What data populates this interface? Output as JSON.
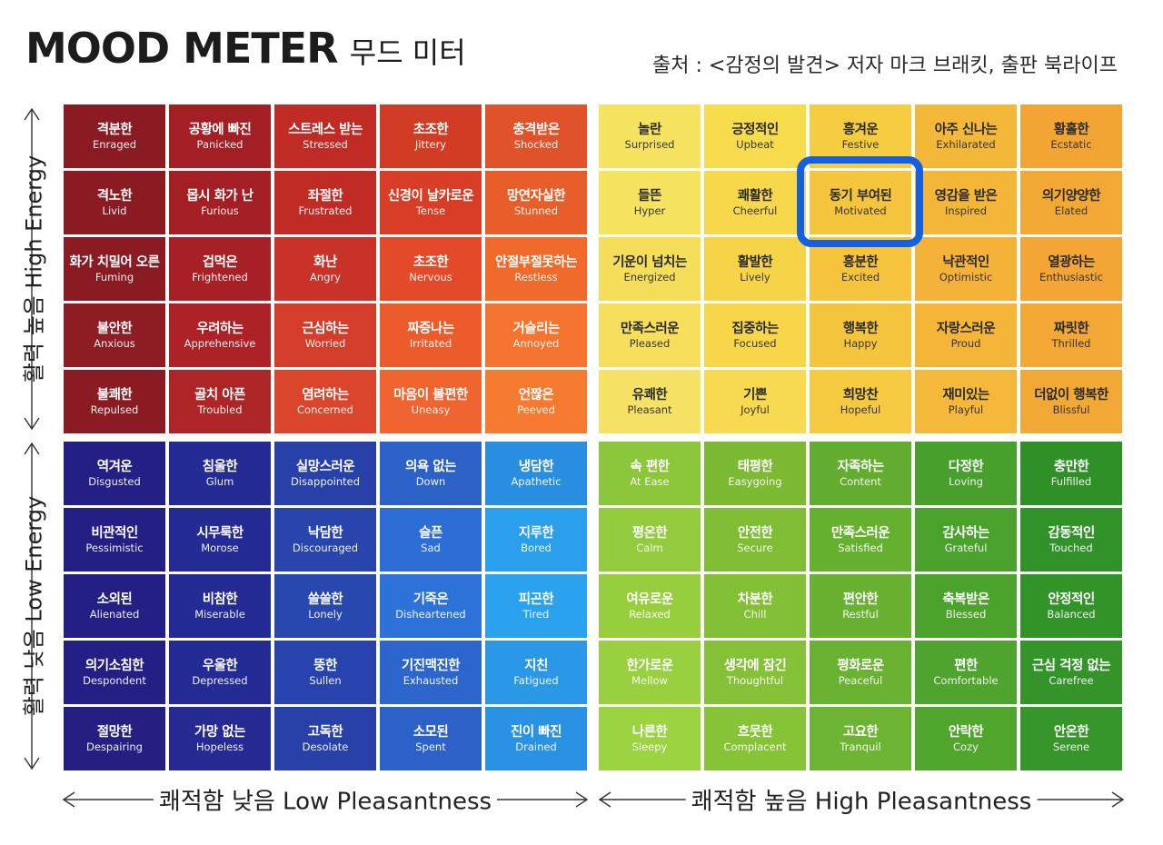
{
  "header": {
    "title": "MOOD METER",
    "subtitle": "무드 미터",
    "source": "출처 : <감정의 발견> 저자 마크 브래킷, 출판 북라이프"
  },
  "axes": {
    "high_energy": "활력 높음 High Energy",
    "low_energy": "활력 낮음 Low Energy",
    "low_pleasantness": "쾌적함 낮음 Low Pleasantness",
    "high_pleasantness": "쾌적함 높음  High Pleasantness"
  },
  "highlighted": "동기 부여된 Motivated",
  "quadrants": [
    {
      "id": "red",
      "colors": [
        [
          "#8b1b22",
          "#a31f24",
          "#c12b25",
          "#d13c25",
          "#e0532a"
        ],
        [
          "#8b1b22",
          "#a31f24",
          "#c12b25",
          "#d83d26",
          "#e85e2a"
        ],
        [
          "#8b1b22",
          "#a62025",
          "#c93228",
          "#e24a2a",
          "#f06a2c"
        ],
        [
          "#8d1c23",
          "#ac2226",
          "#d33d2a",
          "#ec5b2c",
          "#f47430"
        ],
        [
          "#8b1b22",
          "#ae2527",
          "#da452b",
          "#f06430",
          "#f67b30"
        ]
      ],
      "rows": [
        [
          [
            "격분한",
            "Enraged"
          ],
          [
            "공황에 빠진",
            "Panicked"
          ],
          [
            "스트레스 받는",
            "Stressed"
          ],
          [
            "초조한",
            "Jittery"
          ],
          [
            "충격받은",
            "Shocked"
          ]
        ],
        [
          [
            "격노한",
            "Livid"
          ],
          [
            "몹시 화가 난",
            "Furious"
          ],
          [
            "좌절한",
            "Frustrated"
          ],
          [
            "신경이 날카로운",
            "Tense"
          ],
          [
            "망연자실한",
            "Stunned"
          ]
        ],
        [
          [
            "화가 치밀어 오른",
            "Fuming"
          ],
          [
            "겁먹은",
            "Frightened"
          ],
          [
            "화난",
            "Angry"
          ],
          [
            "초조한",
            "Nervous"
          ],
          [
            "안절부절못하는",
            "Restless"
          ]
        ],
        [
          [
            "불안한",
            "Anxious"
          ],
          [
            "우려하는",
            "Apprehensive"
          ],
          [
            "근심하는",
            "Worried"
          ],
          [
            "짜증나는",
            "Irritated"
          ],
          [
            "거슬리는",
            "Annoyed"
          ]
        ],
        [
          [
            "불쾌한",
            "Repulsed"
          ],
          [
            "골치 아픈",
            "Troubled"
          ],
          [
            "염려하는",
            "Concerned"
          ],
          [
            "마음이 불편한",
            "Uneasy"
          ],
          [
            "언짢은",
            "Peeved"
          ]
        ]
      ]
    },
    {
      "id": "yellow",
      "colors": [
        [
          "#f6e35f",
          "#f7dc4e",
          "#f6cd40",
          "#f4b838",
          "#f2a533"
        ],
        [
          "#f6e35f",
          "#f7d84b",
          "#f5c63d",
          "#f4b638",
          "#f2a834"
        ],
        [
          "#f5de5a",
          "#f6d448",
          "#f5c33c",
          "#f4b338",
          "#f3a535"
        ],
        [
          "#f6df5c",
          "#f7d64a",
          "#f5c63d",
          "#f4b538",
          "#f3a835"
        ],
        [
          "#f6e264",
          "#f7da4f",
          "#f6ca40",
          "#f4b83a",
          "#f2a835"
        ]
      ],
      "rows": [
        [
          [
            "놀란",
            "Surprised"
          ],
          [
            "긍정적인",
            "Upbeat"
          ],
          [
            "흥겨운",
            "Festive"
          ],
          [
            "아주 신나는",
            "Exhilarated"
          ],
          [
            "황홀한",
            "Ecstatic"
          ]
        ],
        [
          [
            "들뜬",
            "Hyper"
          ],
          [
            "쾌활한",
            "Cheerful"
          ],
          [
            "동기 부여된",
            "Motivated"
          ],
          [
            "영감을 받은",
            "Inspired"
          ],
          [
            "의기양양한",
            "Elated"
          ]
        ],
        [
          [
            "기운이 넘치는",
            "Energized"
          ],
          [
            "활발한",
            "Lively"
          ],
          [
            "흥분한",
            "Excited"
          ],
          [
            "낙관적인",
            "Optimistic"
          ],
          [
            "열광하는",
            "Enthusiastic"
          ]
        ],
        [
          [
            "만족스러운",
            "Pleased"
          ],
          [
            "집중하는",
            "Focused"
          ],
          [
            "행복한",
            "Happy"
          ],
          [
            "자랑스러운",
            "Proud"
          ],
          [
            "짜릿한",
            "Thrilled"
          ]
        ],
        [
          [
            "유쾌한",
            "Pleasant"
          ],
          [
            "기쁜",
            "Joyful"
          ],
          [
            "희망찬",
            "Hopeful"
          ],
          [
            "재미있는",
            "Playful"
          ],
          [
            "더없이 행복한",
            "Blissful"
          ]
        ]
      ]
    },
    {
      "id": "blue",
      "colors": [
        [
          "#231f84",
          "#252b95",
          "#2841a8",
          "#2c62c8",
          "#2a8ee0"
        ],
        [
          "#231f84",
          "#252b95",
          "#2845ad",
          "#2c6ed6",
          "#2aa0ec"
        ],
        [
          "#231f84",
          "#252b95",
          "#2848b0",
          "#2c72d8",
          "#2aa2ee"
        ],
        [
          "#231f84",
          "#252b95",
          "#2843ad",
          "#2c66cc",
          "#2a98e6"
        ],
        [
          "#241f80",
          "#262b93",
          "#2841a8",
          "#2c62c8",
          "#2a92e2"
        ]
      ],
      "rows": [
        [
          [
            "역겨운",
            "Disgusted"
          ],
          [
            "침울한",
            "Glum"
          ],
          [
            "실망스러운",
            "Disappointed"
          ],
          [
            "의욕 없는",
            "Down"
          ],
          [
            "냉담한",
            "Apathetic"
          ]
        ],
        [
          [
            "비관적인",
            "Pessimistic"
          ],
          [
            "시무룩한",
            "Morose"
          ],
          [
            "낙담한",
            "Discouraged"
          ],
          [
            "슬픈",
            "Sad"
          ],
          [
            "지루한",
            "Bored"
          ]
        ],
        [
          [
            "소외된",
            "Alienated"
          ],
          [
            "비참한",
            "Miserable"
          ],
          [
            "쓸쓸한",
            "Lonely"
          ],
          [
            "기죽은",
            "Disheartened"
          ],
          [
            "피곤한",
            "Tired"
          ]
        ],
        [
          [
            "의기소침한",
            "Despondent"
          ],
          [
            "우울한",
            "Depressed"
          ],
          [
            "뚱한",
            "Sullen"
          ],
          [
            "기진맥진한",
            "Exhausted"
          ],
          [
            "지친",
            "Fatigued"
          ]
        ],
        [
          [
            "절망한",
            "Despairing"
          ],
          [
            "가망 없는",
            "Hopeless"
          ],
          [
            "고독한",
            "Desolate"
          ],
          [
            "소모된",
            "Spent"
          ],
          [
            "진이 빠진",
            "Drained"
          ]
        ]
      ]
    },
    {
      "id": "green",
      "colors": [
        [
          "#8cc63a",
          "#7cba33",
          "#62ac2f",
          "#47a02b",
          "#2f9028"
        ],
        [
          "#92cb3c",
          "#7fbe34",
          "#66b030",
          "#4aa22c",
          "#319229"
        ],
        [
          "#96ce3e",
          "#82c035",
          "#68b131",
          "#4ca32c",
          "#329329"
        ],
        [
          "#98d03f",
          "#84c136",
          "#6ab231",
          "#4ea42d",
          "#349429"
        ],
        [
          "#9cd341",
          "#86c337",
          "#6cb432",
          "#50a62d",
          "#369629"
        ]
      ],
      "rows": [
        [
          [
            "속 편한",
            "At Ease"
          ],
          [
            "태평한",
            "Easygoing"
          ],
          [
            "자족하는",
            "Content"
          ],
          [
            "다정한",
            "Loving"
          ],
          [
            "충만한",
            "Fulfilled"
          ]
        ],
        [
          [
            "평온한",
            "Calm"
          ],
          [
            "안전한",
            "Secure"
          ],
          [
            "만족스러운",
            "Satisfied"
          ],
          [
            "감사하는",
            "Grateful"
          ],
          [
            "감동적인",
            "Touched"
          ]
        ],
        [
          [
            "여유로운",
            "Relaxed"
          ],
          [
            "차분한",
            "Chill"
          ],
          [
            "편안한",
            "Restful"
          ],
          [
            "축복받은",
            "Blessed"
          ],
          [
            "안정적인",
            "Balanced"
          ]
        ],
        [
          [
            "한가로운",
            "Mellow"
          ],
          [
            "생각에 잠긴",
            "Thoughtful"
          ],
          [
            "평화로운",
            "Peaceful"
          ],
          [
            "편한",
            "Comfortable"
          ],
          [
            "근심 걱정 없는",
            "Carefree"
          ]
        ],
        [
          [
            "나른한",
            "Sleepy"
          ],
          [
            "흐뭇한",
            "Complacent"
          ],
          [
            "고요한",
            "Tranquil"
          ],
          [
            "안락한",
            "Cozy"
          ],
          [
            "안온한",
            "Serene"
          ]
        ]
      ]
    }
  ]
}
